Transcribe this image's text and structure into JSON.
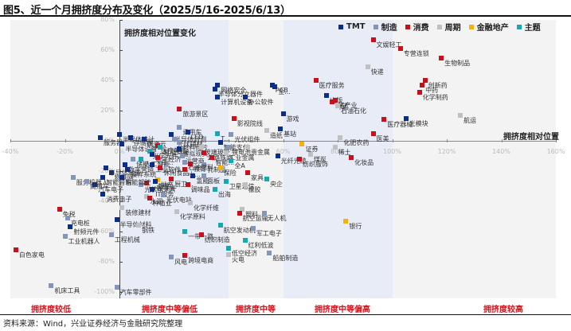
{
  "title": "图5、近一个月拥挤度分布及变化（2025/5/16-2025/6/13）",
  "source": "资料来源：Wind，兴业证券经济与金融研究院整理",
  "colors": {
    "TMT": "#0b2e8a",
    "制造": "#8496b8",
    "消费": "#c8101d",
    "周期": "#c0c0c0",
    "金融地产": "#f2b10b",
    "主题": "#14a8b0",
    "band_gray": "#f3f3f3",
    "band_blue": "#e8ecf6",
    "zone_label": "#d0121b"
  },
  "chart_data": {
    "type": "scatter",
    "title": "图5、近一个月拥挤度分布及变化（2025/5/16-2025/6/13）",
    "xlabel": "拥挤度相对位置",
    "ylabel": "拥挤度相对位置变化",
    "xlim": [
      -0.4,
      1.6
    ],
    "ylim": [
      -1.0,
      0.8
    ],
    "x_ticks": [
      "-40%",
      "-20%",
      "0%",
      "20%",
      "40%",
      "60%",
      "80%",
      "100%",
      "120%",
      "140%",
      "160%"
    ],
    "y_ticks": [
      "80%",
      "60%",
      "40%",
      "20%",
      "0%",
      "-20%",
      "-40%",
      "-60%",
      "-80%",
      "-100%"
    ],
    "legend": [
      "TMT",
      "制造",
      "消费",
      "周期",
      "金融地产",
      "主题"
    ],
    "legend_position": "top-right",
    "grid": false,
    "zones": [
      {
        "label": "拥挤度较低",
        "x_range": [
          -0.4,
          0.0
        ]
      },
      {
        "label": "拥挤度中等偏低",
        "x_range": [
          0.0,
          0.4
        ]
      },
      {
        "label": "拥挤度中等",
        "x_range": [
          0.4,
          0.6
        ]
      },
      {
        "label": "拥挤度中等偏高",
        "x_range": [
          0.6,
          1.0
        ]
      },
      {
        "label": "拥挤度较高",
        "x_range": [
          1.0,
          1.6
        ]
      }
    ],
    "points": [
      {
        "name": "文娱轻工",
        "group": "消费",
        "x": 0.93,
        "y": 0.67
      },
      {
        "name": "专营连锁",
        "group": "消费",
        "x": 1.03,
        "y": 0.61
      },
      {
        "name": "生物制品",
        "group": "消费",
        "x": 1.18,
        "y": 0.55
      },
      {
        "name": "快递",
        "group": "周期",
        "x": 0.91,
        "y": 0.49
      },
      {
        "name": "创新药",
        "group": "消费",
        "x": 1.12,
        "y": 0.4
      },
      {
        "name": "中药",
        "group": "消费",
        "x": 1.11,
        "y": 0.37
      },
      {
        "name": "化学制药",
        "group": "消费",
        "x": 1.1,
        "y": 0.32
      },
      {
        "name": "医疗服务",
        "group": "消费",
        "x": 0.72,
        "y": 0.4
      },
      {
        "name": "PCB",
        "group": "TMT",
        "x": 0.56,
        "y": 0.37
      },
      {
        "name": "金...",
        "group": "TMT",
        "x": 0.57,
        "y": 0.36
      },
      {
        "name": "出版",
        "group": "TMT",
        "x": 0.76,
        "y": 0.3
      },
      {
        "name": "猪产业",
        "group": "消费",
        "x": 0.79,
        "y": 0.27
      },
      {
        "name": "啤酒",
        "group": "消费",
        "x": 0.78,
        "y": 0.26
      },
      {
        "name": "石油石化",
        "group": "周期",
        "x": 0.8,
        "y": 0.23
      },
      {
        "name": "医疗器械",
        "group": "消费",
        "x": 0.97,
        "y": 0.14
      },
      {
        "name": "光模块",
        "group": "TMT",
        "x": 1.05,
        "y": 0.15
      },
      {
        "name": "航运",
        "group": "周期",
        "x": 1.25,
        "y": 0.17
      },
      {
        "name": "医美",
        "group": "消费",
        "x": 0.93,
        "y": 0.05
      },
      {
        "name": "化肥农药",
        "group": "周期",
        "x": 0.81,
        "y": 0.02
      },
      {
        "name": "网络安全",
        "group": "TMT",
        "x": 0.36,
        "y": 0.37
      },
      {
        "name": "半导体分立器件",
        "group": "TMT",
        "x": 0.35,
        "y": 0.34
      },
      {
        "name": "计算机设备",
        "group": "TMT",
        "x": 0.36,
        "y": 0.29
      },
      {
        "name": "办公软件",
        "group": "TMT",
        "x": 0.46,
        "y": 0.29
      },
      {
        "name": "旅游景区",
        "group": "消费",
        "x": 0.22,
        "y": 0.21
      },
      {
        "name": "影视院线",
        "group": "消费",
        "x": 0.42,
        "y": 0.15
      },
      {
        "name": "游戏",
        "group": "TMT",
        "x": 0.6,
        "y": 0.18
      },
      {
        "name": "基站",
        "group": "TMT",
        "x": 0.59,
        "y": 0.08
      },
      {
        "name": "造纸",
        "group": "周期",
        "x": 0.54,
        "y": 0.07
      },
      {
        "name": "乘用车",
        "group": "制造",
        "x": 0.22,
        "y": 0.09
      },
      {
        "name": "LED",
        "group": "TMT",
        "x": 0.25,
        "y": 0.06
      },
      {
        "name": "T...",
        "group": "主题",
        "x": 0.36,
        "y": 0.05
      },
      {
        "name": "光伏组件",
        "group": "制造",
        "x": 0.41,
        "y": 0.04
      },
      {
        "name": "服务器",
        "group": "TMT",
        "x": -0.07,
        "y": 0.02
      },
      {
        "name": "半导体设计",
        "group": "TMT",
        "x": 0.0,
        "y": 0.04
      },
      {
        "name": "存储器",
        "group": "TMT",
        "x": 0.04,
        "y": 0.02
      },
      {
        "name": "国资云",
        "group": "TMT",
        "x": 0.09,
        "y": 0.01
      },
      {
        "name": "半导体封测",
        "group": "TMT",
        "x": 0.19,
        "y": 0.04
      },
      {
        "name": "光伏辅材",
        "group": "制造",
        "x": 0.2,
        "y": 0.01
      },
      {
        "name": "半导体设备",
        "group": "TMT",
        "x": 0.01,
        "y": -0.02
      },
      {
        "name": "医疗美容",
        "group": "消费",
        "x": 0.14,
        "y": -0.03
      },
      {
        "name": "智能驾驶",
        "group": "主题",
        "x": 0.15,
        "y": -0.04
      },
      {
        "name": "虚拟现实",
        "group": "TMT",
        "x": 0.22,
        "y": -0.05
      },
      {
        "name": "材料硅片",
        "group": "制造",
        "x": 0.22,
        "y": -0.01
      },
      {
        "name": "玻璃玻纤",
        "group": "周期",
        "x": 0.3,
        "y": -0.04
      },
      {
        "name": "智能支付",
        "group": "TMT",
        "x": 0.37,
        "y": -0.01
      },
      {
        "name": "锂电池",
        "group": "制造",
        "x": 0.4,
        "y": -0.04
      },
      {
        "name": "贵金属",
        "group": "周期",
        "x": 0.47,
        "y": -0.04
      },
      {
        "name": "证券",
        "group": "金融地产",
        "x": 0.67,
        "y": -0.02
      },
      {
        "name": "稀土",
        "group": "周期",
        "x": 0.79,
        "y": -0.04
      },
      {
        "name": "光学元件",
        "group": "主题",
        "x": 0.11,
        "y": -0.07
      },
      {
        "name": "数字经济",
        "group": "TMT",
        "x": 0.12,
        "y": -0.09
      },
      {
        "name": "运营商",
        "group": "制造",
        "x": 0.23,
        "y": -0.1
      },
      {
        "name": "公路铁路",
        "group": "消费",
        "x": 0.31,
        "y": -0.08
      },
      {
        "name": "工业金属",
        "group": "周期",
        "x": 0.39,
        "y": -0.08
      },
      {
        "name": "煤炭",
        "group": "周期",
        "x": 0.7,
        "y": -0.09
      },
      {
        "name": "光纤光缆",
        "group": "TMT",
        "x": 0.58,
        "y": -0.1
      },
      {
        "name": "化妆品",
        "group": "消费",
        "x": 0.85,
        "y": -0.11
      },
      {
        "name": "储能",
        "group": "制造",
        "x": 0.05,
        "y": -0.12
      },
      {
        "name": "人工智能",
        "group": "主题",
        "x": 0.08,
        "y": -0.12
      },
      {
        "name": "白...",
        "group": "消费",
        "x": 0.14,
        "y": -0.11
      },
      {
        "name": "工业软件",
        "group": "TMT",
        "x": 0.12,
        "y": -0.16
      },
      {
        "name": "教育",
        "group": "消费",
        "x": 0.26,
        "y": -0.15
      },
      {
        "name": "智能...",
        "group": "消费",
        "x": 0.34,
        "y": -0.11
      },
      {
        "name": "乳制品",
        "group": "制造",
        "x": 0.31,
        "y": -0.16
      },
      {
        "name": "保险",
        "group": "金融地产",
        "x": 0.37,
        "y": -0.18
      },
      {
        "name": "全A",
        "group": "主题",
        "x": 0.41,
        "y": -0.13
      },
      {
        "name": "家具",
        "group": "消费",
        "x": 0.47,
        "y": -0.21
      },
      {
        "name": "央企",
        "group": "主题",
        "x": 0.54,
        "y": -0.25
      },
      {
        "name": "纺织服饰",
        "group": "消费",
        "x": 0.66,
        "y": -0.12
      },
      {
        "name": "石油燃料",
        "group": "制造",
        "x": 0.24,
        "y": -0.14
      },
      {
        "name": "数字营销",
        "group": "TMT",
        "x": 0.02,
        "y": -0.16
      },
      {
        "name": "操作系统",
        "group": "TMT",
        "x": 0.03,
        "y": -0.19
      },
      {
        "name": "休闲食品",
        "group": "消费",
        "x": 0.15,
        "y": -0.18
      },
      {
        "name": "小...",
        "group": "消费",
        "x": 0.24,
        "y": -0.19
      },
      {
        "name": "氢能",
        "group": "TMT",
        "x": 0.27,
        "y": -0.23
      },
      {
        "name": "面板",
        "group": "制造",
        "x": 0.31,
        "y": -0.23
      },
      {
        "name": "厨卫...",
        "group": "消费",
        "x": 0.19,
        "y": -0.25
      },
      {
        "name": "调味品",
        "group": "消费",
        "x": 0.25,
        "y": -0.29
      },
      {
        "name": "卫星通信",
        "group": "主题",
        "x": 0.39,
        "y": -0.27
      },
      {
        "name": "橡胶",
        "group": "周期",
        "x": 0.46,
        "y": -0.29
      },
      {
        "name": "出海",
        "group": "主题",
        "x": 0.35,
        "y": -0.32
      },
      {
        "name": "地产",
        "group": "金融地产",
        "x": 0.14,
        "y": -0.26
      },
      {
        "name": "数字...",
        "group": "TMT",
        "x": 0.13,
        "y": -0.27
      },
      {
        "name": "一般零售",
        "group": "消费",
        "x": 0.1,
        "y": -0.28
      },
      {
        "name": "IT服务",
        "group": "TMT",
        "x": 0.12,
        "y": -0.32
      },
      {
        "name": "光伏电池片",
        "group": "制造",
        "x": 0.08,
        "y": -0.29
      },
      {
        "name": "物联网",
        "group": "TMT",
        "x": -0.03,
        "y": -0.21
      },
      {
        "name": "半导体制造",
        "group": "TMT",
        "x": -0.05,
        "y": -0.18
      },
      {
        "name": "智能音箱",
        "group": "TMT",
        "x": -0.06,
        "y": -0.24
      },
      {
        "name": "智能驾驶2",
        "group": "TMT",
        "x": 0.01,
        "y": -0.24
      },
      {
        "name": "汽车电子",
        "group": "TMT",
        "x": -0.09,
        "y": -0.29
      },
      {
        "name": "服务机器人",
        "group": "制造",
        "x": -0.17,
        "y": -0.24
      },
      {
        "name": "商用车",
        "group": "制造",
        "x": -0.12,
        "y": -0.27
      },
      {
        "name": "消费电子",
        "group": "TMT",
        "x": -0.06,
        "y": -0.35
      },
      {
        "name": "水泥",
        "group": "周期",
        "x": 0.1,
        "y": -0.37
      },
      {
        "name": "种植业",
        "group": "消费",
        "x": 0.11,
        "y": -0.38
      },
      {
        "name": "光伏电站",
        "group": "制造",
        "x": 0.16,
        "y": -0.36
      },
      {
        "name": "化学纤维",
        "group": "周期",
        "x": 0.26,
        "y": -0.41
      },
      {
        "name": "化学原料",
        "group": "周期",
        "x": 0.21,
        "y": -0.47
      },
      {
        "name": "装修建材",
        "group": "周期",
        "x": 0.01,
        "y": -0.44
      },
      {
        "name": "免税",
        "group": "消费",
        "x": -0.22,
        "y": -0.45
      },
      {
        "name": "充电桩",
        "group": "制造",
        "x": -0.19,
        "y": -0.51
      },
      {
        "name": "半导体材料",
        "group": "TMT",
        "x": -0.01,
        "y": -0.52
      },
      {
        "name": "射频元件",
        "group": "TMT",
        "x": -0.18,
        "y": -0.57
      },
      {
        "name": "工业机器人",
        "group": "制造",
        "x": -0.2,
        "y": -0.63
      },
      {
        "name": "白色家电",
        "group": "消费",
        "x": -0.38,
        "y": -0.72
      },
      {
        "name": "机床工具",
        "group": "制造",
        "x": -0.25,
        "y": -0.96
      },
      {
        "name": "汽车零部件",
        "group": "制造",
        "x": -0.01,
        "y": -0.97
      },
      {
        "name": "塑料",
        "group": "周期",
        "x": 0.45,
        "y": -0.45
      },
      {
        "name": "航空运输",
        "group": "消费",
        "x": 0.44,
        "y": -0.48
      },
      {
        "name": "无人机",
        "group": "制造",
        "x": 0.53,
        "y": -0.48
      },
      {
        "name": "航空发动机",
        "group": "主题",
        "x": 0.37,
        "y": -0.56
      },
      {
        "name": "钢铁",
        "group": "周期",
        "x": 0.07,
        "y": -0.56
      },
      {
        "name": "工程机械",
        "group": "制造",
        "x": -0.03,
        "y": -0.62
      },
      {
        "name": "一带一路",
        "group": "主题",
        "x": 0.24,
        "y": -0.6
      },
      {
        "name": "纺织制造",
        "group": "消费",
        "x": 0.3,
        "y": -0.62
      },
      {
        "name": "军工电子",
        "group": "制造",
        "x": 0.49,
        "y": -0.58
      },
      {
        "name": "红利低波",
        "group": "主题",
        "x": 0.46,
        "y": -0.66
      },
      {
        "name": "低空经济",
        "group": "主题",
        "x": 0.4,
        "y": -0.71
      },
      {
        "name": "火电",
        "group": "周期",
        "x": 0.4,
        "y": -0.75
      },
      {
        "name": "风电",
        "group": "制造",
        "x": 0.19,
        "y": -0.77
      },
      {
        "name": "跨境电商",
        "group": "消费",
        "x": 0.24,
        "y": -0.76
      },
      {
        "name": "船舶制造",
        "group": "制造",
        "x": 0.55,
        "y": -0.74
      },
      {
        "name": "银行",
        "group": "金融地产",
        "x": 0.83,
        "y": -0.53
      }
    ]
  },
  "legend": [
    {
      "label": "TMT",
      "group": "TMT"
    },
    {
      "label": "制造",
      "group": "制造"
    },
    {
      "label": "消费",
      "group": "消费"
    },
    {
      "label": "周期",
      "group": "周期"
    },
    {
      "label": "金融地产",
      "group": "金融地产"
    },
    {
      "label": "主题",
      "group": "主题"
    }
  ],
  "chart_title_inner": "拥挤度相对位置变化",
  "x_axis_title": "拥挤度相对位置",
  "zones": [
    "拥挤度较低",
    "拥挤度中等偏低",
    "拥挤度中等",
    "拥挤度中等偏高",
    "拥挤度较高"
  ]
}
